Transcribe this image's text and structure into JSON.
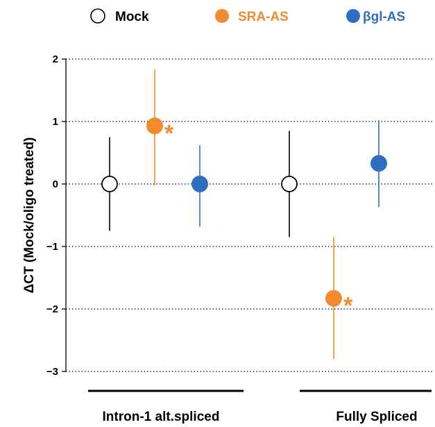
{
  "colors": {
    "mock": "#ffffff",
    "sra": "#f28a2e",
    "bgl": "#2f6fbf",
    "axis": "#000000"
  },
  "chart_data": {
    "type": "scatter",
    "ylabel": "ΔCT (Mock/oligo treated)",
    "ylim": [
      -3,
      2
    ],
    "yticks": [
      2,
      1,
      0,
      -1,
      -2,
      -3
    ],
    "ytick_labels": [
      "2",
      "1",
      "0",
      "−1",
      "−2",
      "−3"
    ],
    "grid": "horizontal dotted",
    "legend": {
      "placement": "top",
      "entries": [
        {
          "label": "Mock",
          "key": "mock"
        },
        {
          "label": "SRA-AS",
          "key": "sra"
        },
        {
          "label": "βgl-AS",
          "key": "bgl"
        }
      ]
    },
    "groups": [
      "Intron-1 alt.spliced",
      "Fully Spliced"
    ],
    "series": [
      {
        "name": "Mock",
        "key": "mock",
        "points": [
          {
            "group": 0,
            "y": 0.0,
            "err_low": -0.75,
            "err_high": 0.75
          },
          {
            "group": 1,
            "y": 0.0,
            "err_low": -0.85,
            "err_high": 0.85
          }
        ]
      },
      {
        "name": "SRA-AS",
        "key": "sra",
        "points": [
          {
            "group": 0,
            "y": 0.93,
            "err_low": -0.02,
            "err_high": 1.83,
            "annotation": "*"
          },
          {
            "group": 1,
            "y": -1.83,
            "err_low": -2.8,
            "err_high": -0.85,
            "annotation": "*"
          }
        ]
      },
      {
        "name": "βgl-AS",
        "key": "bgl",
        "points": [
          {
            "group": 0,
            "y": 0.0,
            "err_low": -0.68,
            "err_high": 0.62
          },
          {
            "group": 1,
            "y": 0.33,
            "err_low": -0.37,
            "err_high": 1.02
          }
        ]
      }
    ]
  }
}
